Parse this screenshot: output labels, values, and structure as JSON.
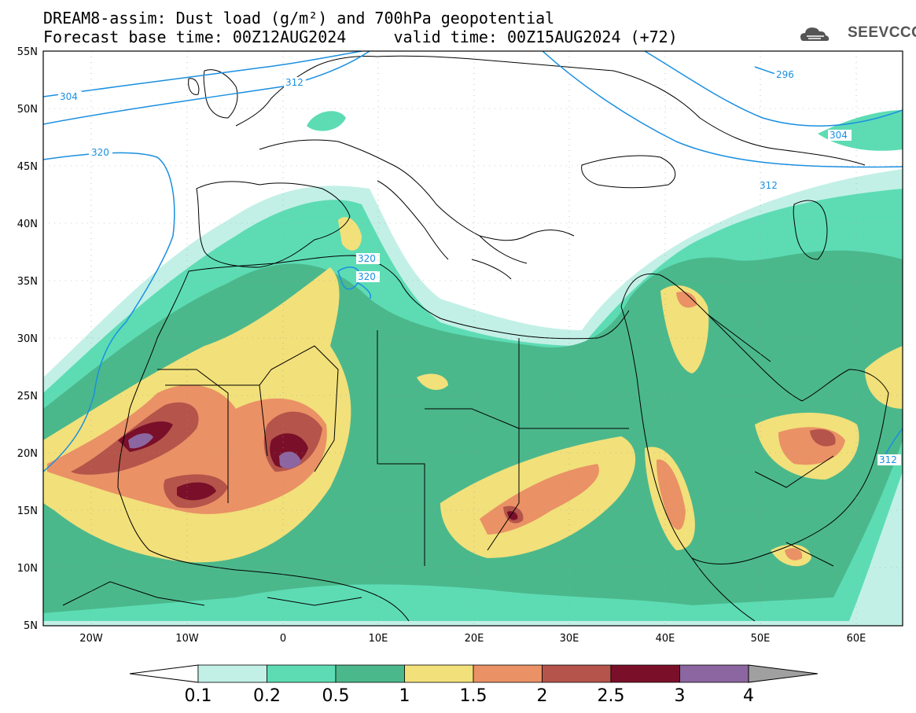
{
  "header": {
    "title_line1": "DREAM8-assim: Dust load (g/m²) and 700hPa geopotential",
    "title_line2": "Forecast base time: 00Z12AUG2024     valid time: 00Z15AUG2024 (+72)",
    "logo_text": "SEEVCCC"
  },
  "axes": {
    "lat_labels": [
      "55N",
      "50N",
      "45N",
      "40N",
      "35N",
      "30N",
      "25N",
      "20N",
      "15N",
      "10N",
      "5N"
    ],
    "lon_labels": [
      "20W",
      "10W",
      "0",
      "10E",
      "20E",
      "30E",
      "40E",
      "50E",
      "60E"
    ]
  },
  "contours": {
    "labels": [
      "304",
      "312",
      "320",
      "320",
      "320",
      "296",
      "304",
      "312",
      "312"
    ],
    "color": "#1a8fe0"
  },
  "colorbar": {
    "ticks": [
      "0.1",
      "0.2",
      "0.5",
      "1",
      "1.5",
      "2",
      "2.5",
      "3",
      "4"
    ],
    "colors": [
      "#c2f0e6",
      "#5ddcb4",
      "#4bb88c",
      "#f2e07a",
      "#ea9166",
      "#b5544a",
      "#7a0f2a",
      "#8c66a0"
    ],
    "under_color": "#ffffff",
    "over_color": "#a0a0a0"
  }
}
